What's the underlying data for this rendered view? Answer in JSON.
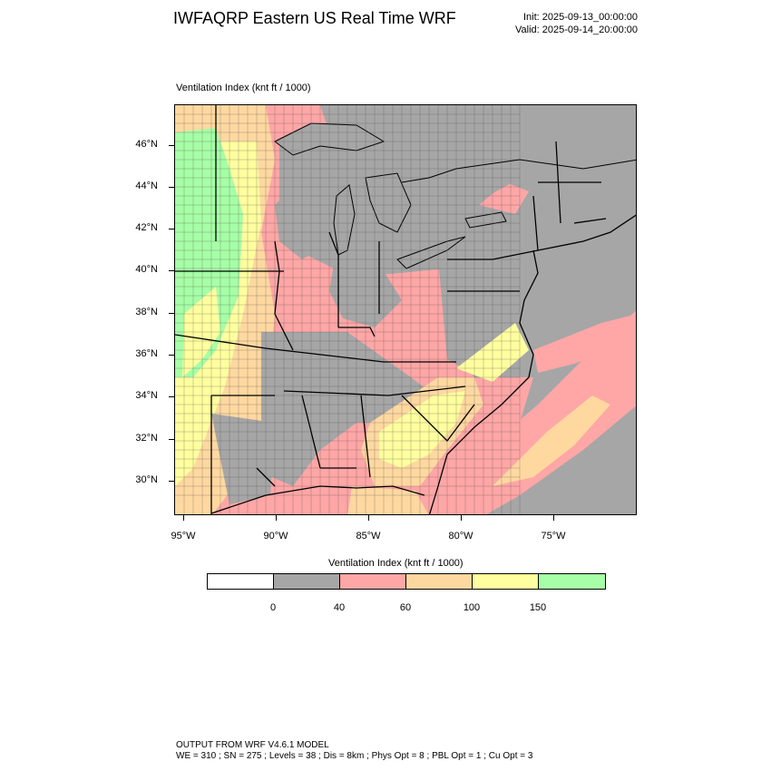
{
  "header": {
    "title": "IWFAQRP Eastern US Real Time WRF",
    "init": "Init: 2025-09-13_00:00:00",
    "valid": "Valid: 2025-09-14_20:00:00"
  },
  "field": {
    "name": "Ventilation Index",
    "units": "(knt ft / 1000)",
    "label": "Ventilation Index   (knt ft / 1000)"
  },
  "map": {
    "lat_labels": [
      "46°N",
      "44°N",
      "42°N",
      "40°N",
      "38°N",
      "36°N",
      "34°N",
      "32°N",
      "30°N"
    ],
    "lon_labels": [
      "95°W",
      "90°W",
      "85°W",
      "80°W",
      "75°W"
    ],
    "lon_range": [
      -96,
      -69
    ],
    "lat_range": [
      28,
      48
    ]
  },
  "colorbar": {
    "title": "Ventilation Index  (knt ft / 1000)",
    "colors": [
      "#ffffff",
      "#a6a6a6",
      "#ffa6a6",
      "#ffd8a0",
      "#ffff9f",
      "#a6ffa6"
    ],
    "levels": [
      "0",
      "40",
      "60",
      "100",
      "150"
    ]
  },
  "footer": {
    "line1": "OUTPUT FROM WRF V4.6.1 MODEL",
    "line2": "WE = 310 ; SN = 275 ; Levels = 38 ; Dis = 8km ; Phys Opt = 8 ; PBL Opt = 1 ; Cu Opt = 3"
  }
}
